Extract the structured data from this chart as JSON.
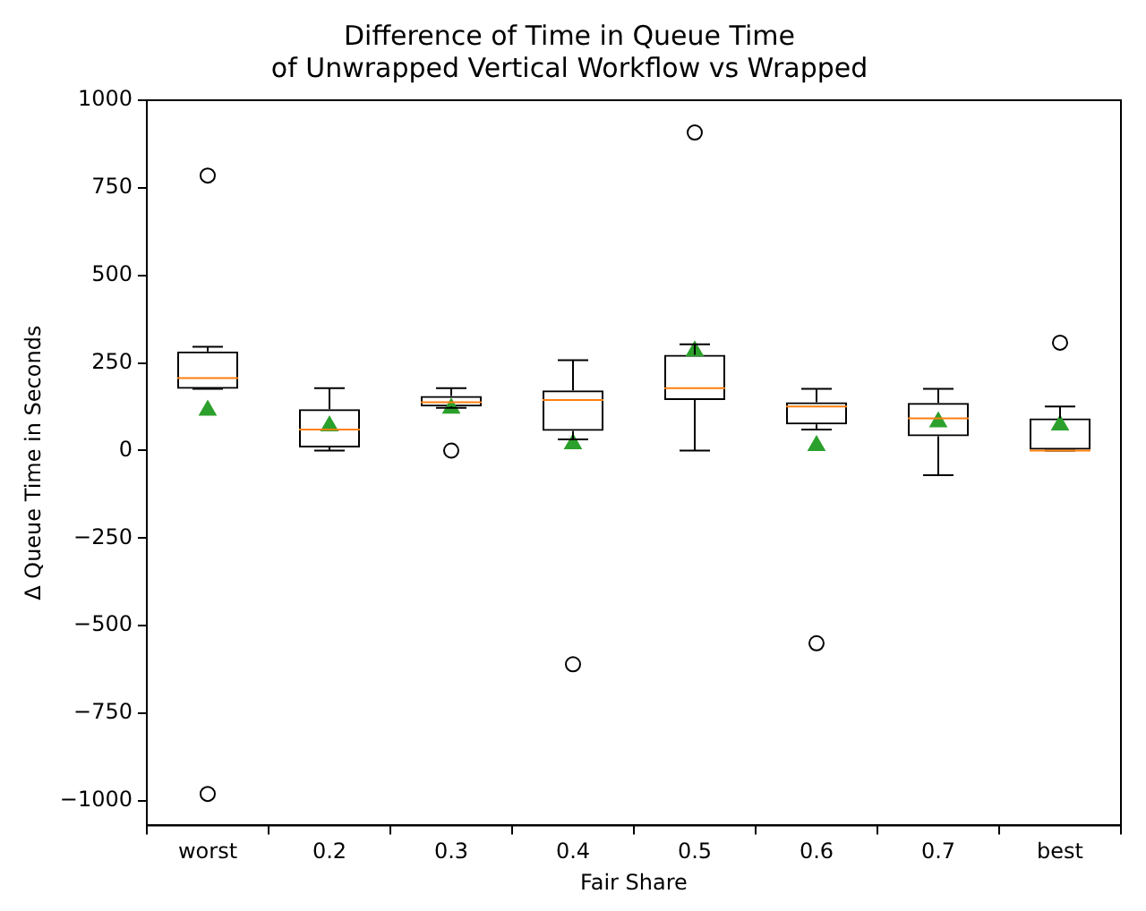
{
  "chart_data": {
    "type": "box",
    "title": "Difference of Time in Queue Time\nof Unwrapped Vertical Workflow vs Wrapped",
    "xlabel": "Fair Share",
    "ylabel": "Δ Queue Time in Seconds",
    "categories": [
      "worst",
      "0.2",
      "0.3",
      "0.4",
      "0.5",
      "0.6",
      "0.7",
      "best"
    ],
    "boxes": [
      {
        "low": 176,
        "q1": 176,
        "median": 207,
        "q3": 283,
        "high": 296,
        "mean": 115,
        "outliers": [
          785,
          -980
        ]
      },
      {
        "low": 0,
        "q1": 9,
        "median": 60,
        "q3": 118,
        "high": 178,
        "mean": 70
      },
      {
        "low": 122,
        "q1": 126,
        "median": 138,
        "q3": 156,
        "high": 178,
        "mean": 121,
        "outliers": [
          0
        ]
      },
      {
        "low": 32,
        "q1": 56,
        "median": 144,
        "q3": 172,
        "high": 258,
        "mean": 19,
        "outliers": [
          -610
        ]
      },
      {
        "low": 0,
        "q1": 144,
        "median": 178,
        "q3": 273,
        "high": 303,
        "mean": 284,
        "outliers": [
          908
        ]
      },
      {
        "low": 60,
        "q1": 75,
        "median": 126,
        "q3": 138,
        "high": 176,
        "mean": 14,
        "outliers": [
          -550
        ]
      },
      {
        "low": -70,
        "q1": 41,
        "median": 92,
        "q3": 136,
        "high": 176,
        "mean": 82
      },
      {
        "low": 0,
        "q1": 0,
        "median": 0,
        "q3": 92,
        "high": 126,
        "mean": 73,
        "outliers": [
          308
        ]
      }
    ],
    "ylim": [
      -1070,
      1000
    ],
    "yticks": [
      -1000,
      -750,
      -500,
      -250,
      0,
      250,
      500,
      750,
      1000
    ],
    "marker": "triangle",
    "grid": false,
    "legend": false
  }
}
